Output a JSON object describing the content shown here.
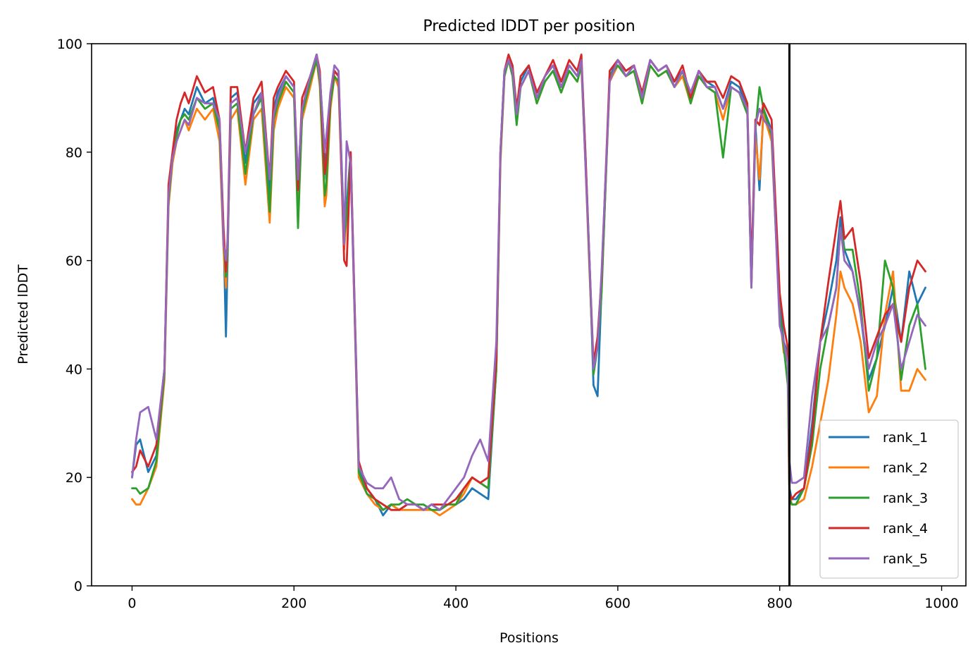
{
  "chart_data": {
    "type": "line",
    "title": "Predicted lDDT per position",
    "xlabel": "Positions",
    "ylabel": "Predicted lDDT",
    "xlim": [
      -50,
      1030
    ],
    "ylim": [
      0,
      100
    ],
    "xticks": [
      0,
      200,
      400,
      600,
      800,
      1000
    ],
    "yticks": [
      0,
      20,
      40,
      60,
      80,
      100
    ],
    "grid": false,
    "legend_position": "lower right",
    "vline_x": 812,
    "series": [
      {
        "name": "rank_1",
        "color": "#1f77b4",
        "x": [
          0,
          5,
          10,
          20,
          30,
          40,
          45,
          50,
          55,
          60,
          65,
          70,
          80,
          90,
          100,
          108,
          113,
          116,
          118,
          122,
          130,
          140,
          150,
          160,
          170,
          175,
          180,
          190,
          200,
          205,
          210,
          220,
          228,
          232,
          238,
          240,
          245,
          250,
          255,
          262,
          265,
          270,
          280,
          290,
          300,
          310,
          320,
          330,
          340,
          350,
          360,
          370,
          380,
          390,
          400,
          410,
          420,
          430,
          440,
          450,
          455,
          460,
          465,
          470,
          475,
          480,
          490,
          500,
          510,
          520,
          530,
          540,
          550,
          555,
          560,
          565,
          570,
          575,
          580,
          590,
          600,
          610,
          620,
          630,
          640,
          650,
          660,
          670,
          680,
          690,
          700,
          710,
          720,
          730,
          740,
          750,
          760,
          765,
          770,
          775,
          780,
          790,
          800,
          805,
          810,
          812,
          815,
          820,
          830,
          840,
          850,
          860,
          870,
          875,
          880,
          890,
          900,
          910,
          920,
          930,
          940,
          950,
          960,
          970,
          980
        ],
        "values": [
          20,
          26,
          27,
          21,
          24,
          40,
          72,
          79,
          84,
          86,
          88,
          87,
          92,
          89,
          90,
          85,
          65,
          46,
          60,
          90,
          91,
          78,
          89,
          91,
          72,
          88,
          91,
          94,
          92,
          70,
          88,
          94,
          98,
          94,
          80,
          75,
          90,
          95,
          94,
          65,
          70,
          80,
          22,
          18,
          16,
          13,
          15,
          14,
          15,
          15,
          14,
          15,
          14,
          15,
          15,
          16,
          18,
          17,
          16,
          40,
          80,
          95,
          97,
          95,
          88,
          93,
          96,
          90,
          94,
          96,
          92,
          96,
          94,
          97,
          80,
          60,
          37,
          35,
          55,
          94,
          97,
          95,
          96,
          90,
          97,
          95,
          96,
          93,
          95,
          90,
          95,
          93,
          92,
          88,
          93,
          92,
          88,
          55,
          85,
          73,
          88,
          84,
          52,
          45,
          43,
          18,
          16,
          16,
          18,
          30,
          45,
          52,
          60,
          68,
          62,
          58,
          50,
          38,
          42,
          48,
          55,
          45,
          58,
          52,
          55
        ]
      },
      {
        "name": "rank_2",
        "color": "#ff7f0e",
        "x": [
          0,
          5,
          10,
          20,
          30,
          40,
          45,
          50,
          55,
          60,
          65,
          70,
          80,
          90,
          100,
          108,
          113,
          116,
          118,
          122,
          130,
          140,
          150,
          160,
          170,
          175,
          180,
          190,
          200,
          205,
          210,
          220,
          228,
          232,
          238,
          240,
          245,
          250,
          255,
          262,
          265,
          270,
          280,
          290,
          300,
          310,
          320,
          330,
          340,
          350,
          360,
          370,
          380,
          390,
          400,
          410,
          420,
          430,
          440,
          450,
          455,
          460,
          465,
          470,
          475,
          480,
          490,
          500,
          510,
          520,
          530,
          540,
          550,
          555,
          560,
          565,
          570,
          575,
          580,
          590,
          600,
          610,
          620,
          630,
          640,
          650,
          660,
          670,
          680,
          690,
          700,
          710,
          720,
          730,
          740,
          750,
          760,
          765,
          770,
          775,
          780,
          790,
          800,
          805,
          810,
          812,
          815,
          820,
          830,
          840,
          850,
          860,
          870,
          875,
          880,
          890,
          900,
          910,
          920,
          930,
          940,
          950,
          960,
          970,
          980
        ],
        "values": [
          16,
          15,
          15,
          18,
          22,
          38,
          70,
          78,
          82,
          84,
          86,
          84,
          88,
          86,
          88,
          82,
          62,
          55,
          62,
          86,
          88,
          74,
          86,
          88,
          67,
          84,
          88,
          92,
          90,
          70,
          86,
          92,
          97,
          92,
          70,
          72,
          88,
          94,
          92,
          62,
          68,
          78,
          20,
          17,
          15,
          14,
          15,
          14,
          14,
          14,
          14,
          14,
          13,
          14,
          15,
          17,
          20,
          19,
          18,
          40,
          78,
          94,
          97,
          94,
          87,
          92,
          95,
          89,
          93,
          95,
          91,
          95,
          93,
          96,
          78,
          58,
          40,
          45,
          55,
          93,
          96,
          94,
          95,
          89,
          96,
          94,
          95,
          92,
          94,
          89,
          94,
          92,
          91,
          86,
          92,
          91,
          87,
          55,
          83,
          75,
          87,
          82,
          50,
          43,
          42,
          17,
          15,
          15,
          16,
          22,
          30,
          38,
          50,
          58,
          55,
          52,
          45,
          32,
          35,
          50,
          58,
          36,
          36,
          40,
          38
        ]
      },
      {
        "name": "rank_3",
        "color": "#2ca02c",
        "x": [
          0,
          5,
          10,
          20,
          30,
          40,
          45,
          50,
          55,
          60,
          65,
          70,
          80,
          90,
          100,
          108,
          113,
          116,
          118,
          122,
          130,
          140,
          150,
          160,
          170,
          175,
          180,
          190,
          200,
          205,
          210,
          220,
          228,
          232,
          238,
          240,
          245,
          250,
          255,
          262,
          265,
          270,
          280,
          290,
          300,
          310,
          320,
          330,
          340,
          350,
          360,
          370,
          380,
          390,
          400,
          410,
          420,
          430,
          440,
          450,
          455,
          460,
          465,
          470,
          475,
          480,
          490,
          500,
          510,
          520,
          530,
          540,
          550,
          555,
          560,
          565,
          570,
          575,
          580,
          590,
          600,
          610,
          620,
          630,
          640,
          650,
          660,
          670,
          680,
          690,
          700,
          710,
          720,
          730,
          740,
          750,
          760,
          765,
          770,
          775,
          780,
          790,
          800,
          805,
          810,
          812,
          815,
          820,
          830,
          840,
          850,
          860,
          870,
          875,
          880,
          890,
          900,
          910,
          920,
          930,
          940,
          950,
          960,
          970,
          980
        ],
        "values": [
          18,
          18,
          17,
          18,
          23,
          39,
          71,
          79,
          83,
          86,
          87,
          86,
          90,
          88,
          89,
          84,
          64,
          57,
          62,
          88,
          89,
          76,
          87,
          90,
          69,
          86,
          89,
          93,
          91,
          66,
          87,
          93,
          97,
          93,
          72,
          74,
          89,
          94,
          93,
          64,
          68,
          79,
          21,
          17,
          16,
          14,
          15,
          15,
          16,
          15,
          15,
          14,
          14,
          15,
          15,
          18,
          20,
          19,
          18,
          40,
          79,
          94,
          97,
          94,
          85,
          92,
          95,
          89,
          93,
          95,
          91,
          95,
          93,
          96,
          79,
          59,
          39,
          44,
          54,
          94,
          96,
          94,
          95,
          89,
          96,
          94,
          95,
          92,
          95,
          89,
          94,
          92,
          91,
          79,
          92,
          91,
          87,
          56,
          84,
          92,
          88,
          83,
          50,
          44,
          37,
          16,
          15,
          15,
          18,
          26,
          40,
          48,
          55,
          66,
          62,
          62,
          52,
          36,
          42,
          60,
          55,
          38,
          48,
          52,
          40
        ]
      },
      {
        "name": "rank_4",
        "color": "#d62728",
        "x": [
          0,
          5,
          10,
          20,
          30,
          40,
          45,
          50,
          55,
          60,
          65,
          70,
          80,
          90,
          100,
          108,
          113,
          116,
          118,
          122,
          130,
          140,
          150,
          160,
          170,
          175,
          180,
          190,
          200,
          205,
          210,
          220,
          228,
          232,
          238,
          240,
          245,
          250,
          255,
          262,
          265,
          270,
          280,
          290,
          300,
          310,
          320,
          330,
          340,
          350,
          360,
          370,
          380,
          390,
          400,
          410,
          420,
          430,
          440,
          450,
          455,
          460,
          465,
          470,
          475,
          480,
          490,
          500,
          510,
          520,
          530,
          540,
          550,
          555,
          560,
          565,
          570,
          575,
          580,
          590,
          600,
          610,
          620,
          630,
          640,
          650,
          660,
          670,
          680,
          690,
          700,
          710,
          720,
          730,
          740,
          750,
          760,
          765,
          770,
          775,
          780,
          790,
          800,
          805,
          810,
          812,
          815,
          820,
          830,
          840,
          850,
          860,
          870,
          875,
          880,
          890,
          900,
          910,
          920,
          930,
          940,
          950,
          960,
          970,
          980
        ],
        "values": [
          21,
          22,
          25,
          22,
          26,
          40,
          74,
          80,
          86,
          89,
          91,
          89,
          94,
          91,
          92,
          86,
          66,
          58,
          64,
          92,
          92,
          80,
          90,
          93,
          75,
          90,
          92,
          95,
          93,
          73,
          90,
          94,
          98,
          95,
          76,
          78,
          91,
          95,
          94,
          60,
          59,
          80,
          23,
          18,
          16,
          15,
          14,
          14,
          15,
          15,
          14,
          15,
          15,
          15,
          16,
          18,
          20,
          19,
          20,
          42,
          80,
          95,
          98,
          96,
          88,
          94,
          96,
          91,
          94,
          97,
          93,
          97,
          95,
          98,
          80,
          60,
          41,
          46,
          57,
          95,
          97,
          95,
          96,
          91,
          97,
          95,
          96,
          93,
          96,
          90,
          95,
          93,
          93,
          90,
          94,
          93,
          89,
          58,
          86,
          85,
          89,
          86,
          54,
          48,
          44,
          17,
          16,
          17,
          18,
          28,
          45,
          56,
          66,
          71,
          64,
          66,
          56,
          42,
          46,
          50,
          52,
          45,
          55,
          60,
          58
        ]
      },
      {
        "name": "rank_5",
        "color": "#9467bd",
        "x": [
          0,
          5,
          10,
          20,
          30,
          40,
          45,
          50,
          55,
          60,
          65,
          70,
          80,
          90,
          100,
          108,
          113,
          116,
          118,
          122,
          130,
          140,
          150,
          160,
          170,
          175,
          180,
          190,
          200,
          205,
          210,
          220,
          228,
          232,
          238,
          240,
          245,
          250,
          255,
          262,
          265,
          270,
          280,
          290,
          300,
          310,
          320,
          330,
          340,
          350,
          360,
          370,
          380,
          390,
          400,
          410,
          420,
          430,
          440,
          450,
          455,
          460,
          465,
          470,
          475,
          480,
          490,
          500,
          510,
          520,
          530,
          540,
          550,
          555,
          560,
          565,
          570,
          575,
          580,
          590,
          600,
          610,
          620,
          630,
          640,
          650,
          660,
          670,
          680,
          690,
          700,
          710,
          720,
          730,
          740,
          750,
          760,
          765,
          770,
          775,
          780,
          790,
          800,
          805,
          810,
          812,
          815,
          820,
          830,
          840,
          850,
          860,
          870,
          875,
          880,
          890,
          900,
          910,
          920,
          930,
          940,
          950,
          960,
          970,
          980
        ],
        "values": [
          20,
          27,
          32,
          33,
          27,
          40,
          72,
          79,
          82,
          84,
          86,
          85,
          90,
          89,
          89,
          86,
          63,
          60,
          63,
          89,
          90,
          80,
          87,
          91,
          75,
          87,
          90,
          94,
          92,
          75,
          88,
          94,
          98,
          94,
          80,
          83,
          91,
          96,
          95,
          63,
          82,
          78,
          22,
          19,
          18,
          18,
          20,
          16,
          15,
          15,
          14,
          15,
          14,
          16,
          18,
          20,
          24,
          27,
          23,
          45,
          80,
          95,
          97,
          95,
          87,
          92,
          95,
          90,
          94,
          96,
          92,
          96,
          94,
          97,
          78,
          60,
          40,
          44,
          58,
          93,
          97,
          94,
          96,
          90,
          97,
          95,
          96,
          92,
          95,
          91,
          95,
          92,
          92,
          88,
          92,
          91,
          88,
          55,
          85,
          88,
          86,
          84,
          48,
          45,
          41,
          23,
          19,
          19,
          20,
          35,
          45,
          48,
          55,
          66,
          60,
          58,
          50,
          40,
          45,
          48,
          52,
          40,
          45,
          50,
          48
        ]
      }
    ]
  }
}
